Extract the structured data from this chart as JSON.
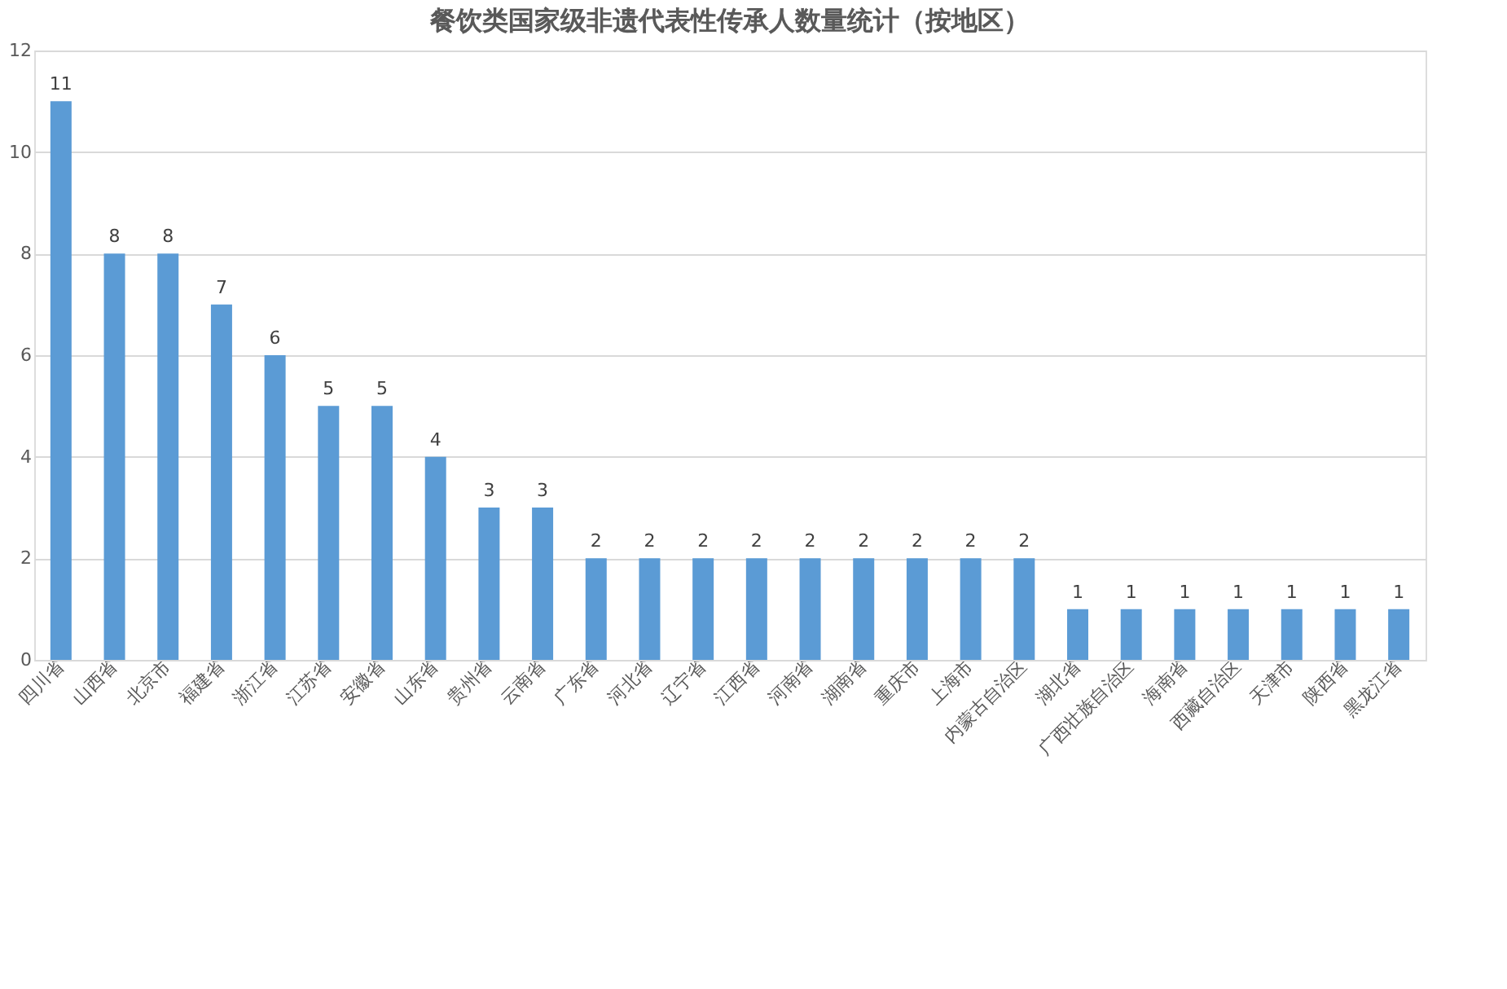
{
  "chart_data": {
    "type": "bar",
    "title": "餐饮类国家级非遗代表性传承人数量统计（按地区）",
    "categories": [
      "四川省",
      "山西省",
      "北京市",
      "福建省",
      "浙江省",
      "江苏省",
      "安徽省",
      "山东省",
      "贵州省",
      "云南省",
      "广东省",
      "河北省",
      "辽宁省",
      "江西省",
      "河南省",
      "湖南省",
      "重庆市",
      "上海市",
      "内蒙古自治区",
      "湖北省",
      "广西壮族自治区",
      "海南省",
      "西藏自治区",
      "天津市",
      "陕西省",
      "黑龙江省"
    ],
    "values": [
      11,
      8,
      8,
      7,
      6,
      5,
      5,
      4,
      3,
      3,
      2,
      2,
      2,
      2,
      2,
      2,
      2,
      2,
      2,
      1,
      1,
      1,
      1,
      1,
      1,
      1
    ],
    "color": "#5b9bd5",
    "ylim": [
      0,
      12
    ],
    "yticks": [
      0,
      2,
      4,
      6,
      8,
      10,
      12
    ],
    "grid": "y",
    "data_labels": true
  }
}
